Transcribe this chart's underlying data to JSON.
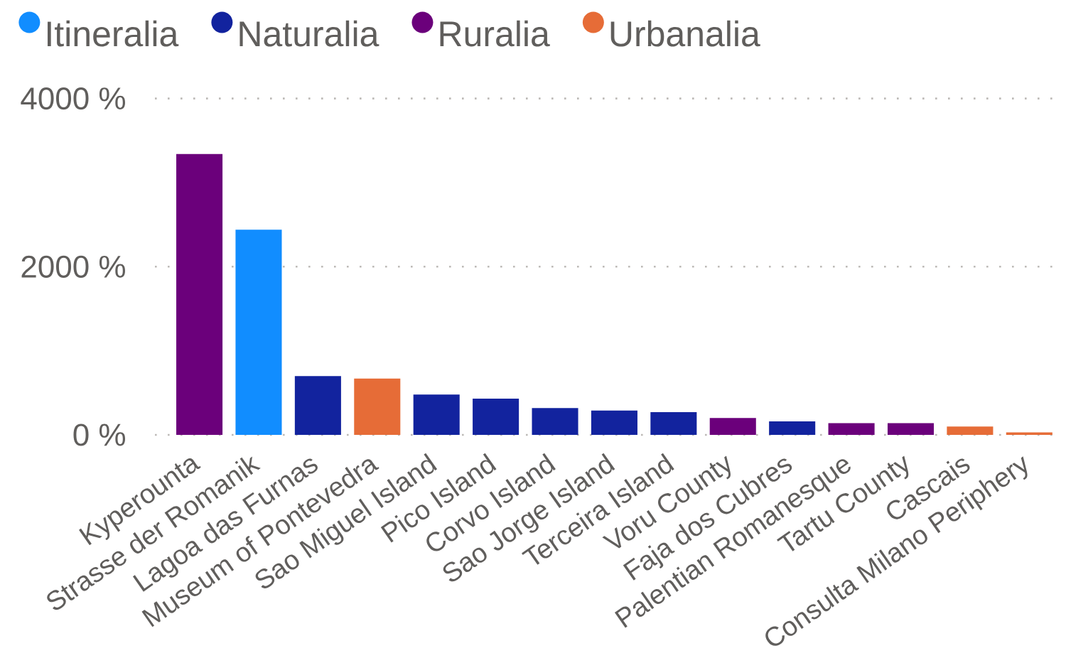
{
  "chart_data": {
    "type": "bar",
    "categories": [
      "Kyperounta",
      "Strasse der Romanik",
      "Lagoa das Furnas",
      "Museum of Pontevedra",
      "Sao Miguel Island",
      "Pico Island",
      "Corvo Island",
      "Sao Jorge Island",
      "Terceira Island",
      "Voru County",
      "Faja dos Cubres",
      "Palentian Romanesque",
      "Tartu County",
      "Cascais",
      "Consulta Milano Periphery"
    ],
    "series": [
      {
        "name": "Itineralia",
        "color": "#118DFF",
        "values": [
          null,
          2440,
          null,
          null,
          null,
          null,
          null,
          null,
          null,
          null,
          null,
          null,
          null,
          null,
          null
        ]
      },
      {
        "name": "Naturalia",
        "color": "#12239E",
        "values": [
          null,
          null,
          700,
          null,
          480,
          430,
          320,
          290,
          270,
          null,
          160,
          null,
          null,
          null,
          null
        ]
      },
      {
        "name": "Ruralia",
        "color": "#6B007B",
        "values": [
          3340,
          null,
          null,
          null,
          null,
          null,
          null,
          null,
          null,
          200,
          null,
          140,
          140,
          null,
          null
        ]
      },
      {
        "name": "Urbanalia",
        "color": "#E66C37",
        "values": [
          null,
          null,
          null,
          670,
          null,
          null,
          null,
          null,
          null,
          null,
          null,
          null,
          null,
          100,
          30
        ]
      }
    ],
    "stacked": true,
    "ylim": [
      0,
      4000
    ],
    "yticks": [
      {
        "value": 0,
        "label": "0 %"
      },
      {
        "value": 2000,
        "label": "2000 %"
      },
      {
        "value": 4000,
        "label": "4000 %"
      }
    ],
    "grid": "y",
    "legend": "top left"
  }
}
